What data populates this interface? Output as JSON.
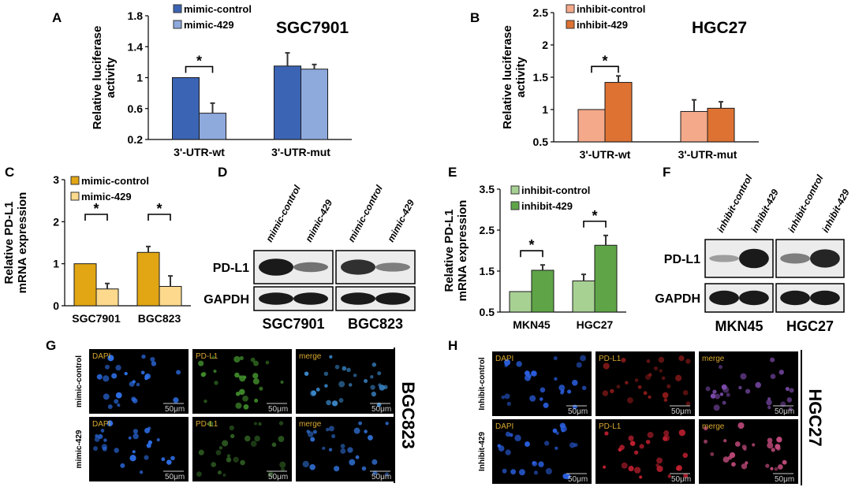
{
  "chart_data": [
    {
      "panel": "A",
      "type": "bar",
      "title": "SGC7901",
      "ylabel": "Relative luciferase activity",
      "categories": [
        "3'-UTR-wt",
        "3'-UTR-mut"
      ],
      "series": [
        {
          "name": "mimic-control",
          "values": [
            1.0,
            1.15
          ],
          "errors": [
            0.0,
            0.17
          ]
        },
        {
          "name": "mimic-429",
          "values": [
            0.54,
            1.11
          ],
          "errors": [
            0.13,
            0.06
          ]
        }
      ],
      "ylim": [
        0.2,
        1.8
      ],
      "yticks": [
        "0.2",
        "0.6",
        "1",
        "1.4",
        "1.8"
      ],
      "significance": [
        "*",
        ""
      ],
      "colors": [
        "#3c64b4",
        "#8ea9dc"
      ],
      "legend": "top-left"
    },
    {
      "panel": "B",
      "type": "bar",
      "title": "HGC27",
      "ylabel": "Relative luciferase activity",
      "categories": [
        "3'-UTR-wt",
        "3'-UTR-mut"
      ],
      "series": [
        {
          "name": "inhibit-control",
          "values": [
            1.0,
            0.97
          ],
          "errors": [
            0.0,
            0.18
          ]
        },
        {
          "name": "inhibit-429",
          "values": [
            1.42,
            1.02
          ],
          "errors": [
            0.1,
            0.1
          ]
        }
      ],
      "ylim": [
        0.5,
        2.5
      ],
      "yticks": [
        "0.5",
        "1",
        "1.5",
        "2",
        "2.5"
      ],
      "significance": [
        "*",
        ""
      ],
      "colors": [
        "#f4a98a",
        "#de7232"
      ],
      "legend": "top-left"
    },
    {
      "panel": "C",
      "type": "bar",
      "title": "",
      "ylabel": "Relative PD-L1 mRNA expression",
      "categories": [
        "SGC7901",
        "BGC823"
      ],
      "series": [
        {
          "name": "mimic-control",
          "values": [
            1.0,
            1.27
          ],
          "errors": [
            0.0,
            0.14
          ]
        },
        {
          "name": "mimic-429",
          "values": [
            0.4,
            0.46
          ],
          "errors": [
            0.13,
            0.25
          ]
        }
      ],
      "ylim": [
        0,
        3
      ],
      "yticks": [
        "0",
        "1",
        "2",
        "3"
      ],
      "significance": [
        "*",
        "*"
      ],
      "colors": [
        "#e2a614",
        "#fcd98c"
      ],
      "legend": "top-left"
    },
    {
      "panel": "E",
      "type": "bar",
      "title": "",
      "ylabel": "Relative PD-L1 mRNA expression",
      "categories": [
        "MKN45",
        "HGC27"
      ],
      "series": [
        {
          "name": "inhibit-control",
          "values": [
            1.0,
            1.26
          ],
          "errors": [
            0.0,
            0.16
          ]
        },
        {
          "name": "inhibit-429",
          "values": [
            1.52,
            2.13
          ],
          "errors": [
            0.13,
            0.24
          ]
        }
      ],
      "ylim": [
        0.5,
        3.5
      ],
      "yticks": [
        "0.5",
        "1.5",
        "2.5",
        "3.5"
      ],
      "significance": [
        "*",
        "*"
      ],
      "colors": [
        "#a7d193",
        "#5fa548"
      ],
      "legend": "top-left"
    }
  ],
  "panel_labels": [
    "A",
    "B",
    "C",
    "D",
    "E",
    "F",
    "G",
    "H"
  ],
  "blot_d": {
    "lanes": [
      "mimic-control",
      "mimic-429",
      "mimic-control",
      "mimic-429"
    ],
    "rows": [
      "PD-L1",
      "GAPDH"
    ],
    "cells": [
      "SGC7901",
      "BGC823"
    ]
  },
  "blot_f": {
    "lanes": [
      "inhibit-control",
      "inhibit-429",
      "inhibit-control",
      "inhibit-429"
    ],
    "rows": [
      "PD-L1",
      "GAPDH"
    ],
    "cells": [
      "MKN45",
      "HGC27"
    ]
  },
  "if_g": {
    "cell_line": "BGC823",
    "rows": [
      "mimic-control",
      "mimic-429"
    ],
    "channels": [
      "DAPI",
      "PD-L1",
      "merge"
    ],
    "scale_bar": "50μm"
  },
  "if_h": {
    "cell_line": "HGC27",
    "rows": [
      "Inhibit-control",
      "Inhibit-429"
    ],
    "channels": [
      "DAPI",
      "PD-L1",
      "merge"
    ],
    "scale_bar": "50μm"
  }
}
